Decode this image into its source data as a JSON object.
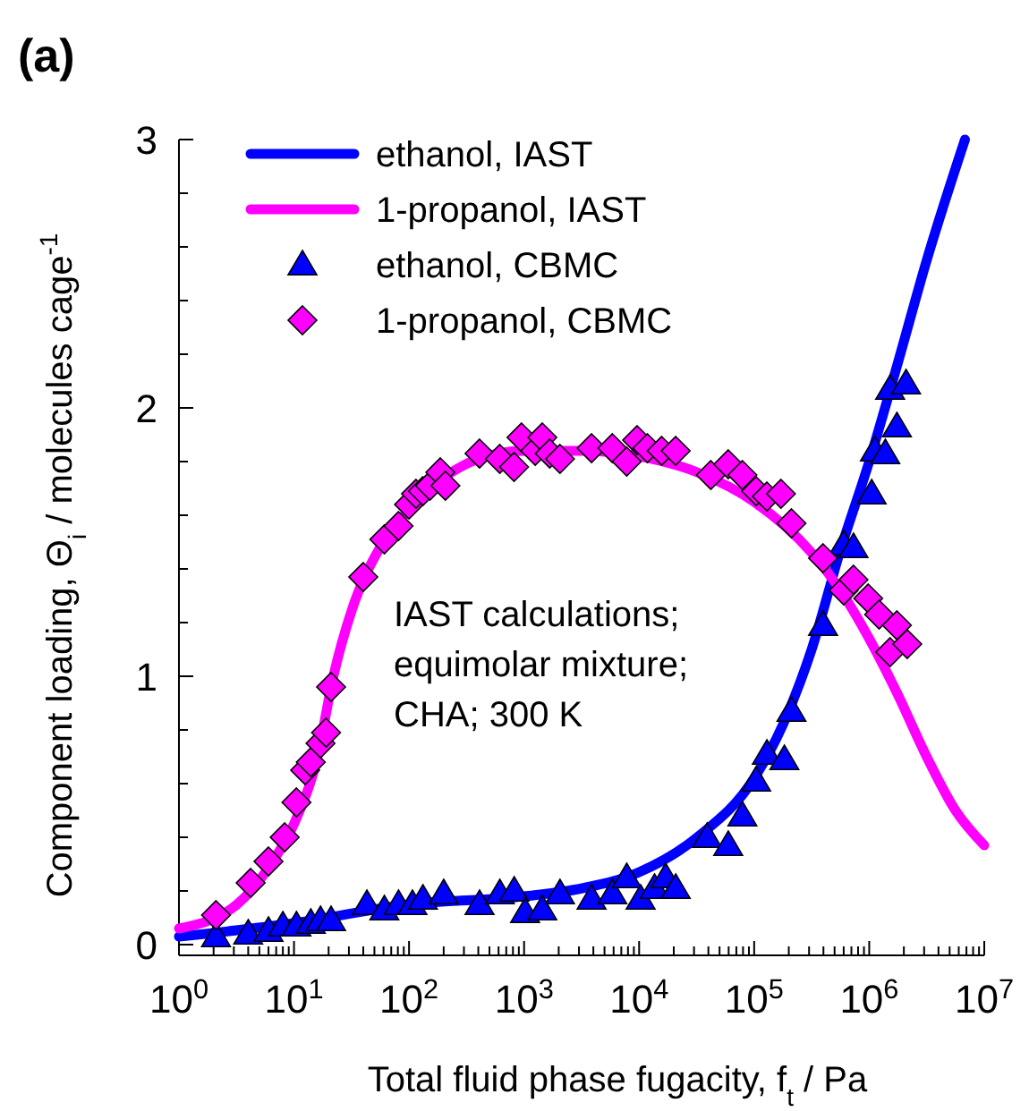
{
  "chart_data": {
    "type": "scatter",
    "title": "(a)",
    "xlabel": "Total fluid phase fugacity, f$_{t}$ / Pa",
    "ylabel": "Component loading, Θ$_{i}$ / molecules cage$^{-1}$",
    "annotations": [
      "IAST calculations;\nequimolar mixture;\nCHA; 300 K"
    ],
    "log": "x",
    "legend": "top left",
    "grid": false,
    "xlim": [
      1,
      10000000
    ],
    "ylim": [
      -0.04,
      3
    ],
    "xticks": [
      {
        "value": 1,
        "label": "10$^{0}$"
      },
      {
        "value": 2,
        "label": null
      },
      {
        "value": 3,
        "label": null
      },
      {
        "value": 4,
        "label": null
      },
      {
        "value": 5,
        "label": null
      },
      {
        "value": 6,
        "label": null
      },
      {
        "value": 7,
        "label": null
      },
      {
        "value": 8,
        "label": null
      },
      {
        "value": 9,
        "label": null
      },
      {
        "value": 10,
        "label": "10$^{1}$"
      },
      {
        "value": 20,
        "label": null
      },
      {
        "value": 30,
        "label": null
      },
      {
        "value": 40,
        "label": null
      },
      {
        "value": 50,
        "label": null
      },
      {
        "value": 60,
        "label": null
      },
      {
        "value": 70,
        "label": null
      },
      {
        "value": 80,
        "label": null
      },
      {
        "value": 90,
        "label": null
      },
      {
        "value": 100,
        "label": "10$^{2}$"
      },
      {
        "value": 200,
        "label": null
      },
      {
        "value": 300,
        "label": null
      },
      {
        "value": 400,
        "label": null
      },
      {
        "value": 500,
        "label": null
      },
      {
        "value": 600,
        "label": null
      },
      {
        "value": 700,
        "label": null
      },
      {
        "value": 800,
        "label": null
      },
      {
        "value": 900,
        "label": null
      },
      {
        "value": 1000,
        "label": "10$^{3}$"
      },
      {
        "value": 2000,
        "label": null
      },
      {
        "value": 3000,
        "label": null
      },
      {
        "value": 4000,
        "label": null
      },
      {
        "value": 5000,
        "label": null
      },
      {
        "value": 6000,
        "label": null
      },
      {
        "value": 7000,
        "label": null
      },
      {
        "value": 8000,
        "label": null
      },
      {
        "value": 9000,
        "label": null
      },
      {
        "value": 10000,
        "label": "10$^{4}$"
      },
      {
        "value": 20000,
        "label": null
      },
      {
        "value": 30000,
        "label": null
      },
      {
        "value": 40000,
        "label": null
      },
      {
        "value": 50000,
        "label": null
      },
      {
        "value": 60000,
        "label": null
      },
      {
        "value": 70000,
        "label": null
      },
      {
        "value": 80000,
        "label": null
      },
      {
        "value": 90000,
        "label": null
      },
      {
        "value": 100000,
        "label": "10$^{5}$"
      },
      {
        "value": 200000,
        "label": null
      },
      {
        "value": 300000,
        "label": null
      },
      {
        "value": 400000,
        "label": null
      },
      {
        "value": 500000,
        "label": null
      },
      {
        "value": 600000,
        "label": null
      },
      {
        "value": 700000,
        "label": null
      },
      {
        "value": 800000,
        "label": null
      },
      {
        "value": 900000,
        "label": null
      },
      {
        "value": 1000000,
        "label": "10$^{6}$"
      },
      {
        "value": 2000000,
        "label": null
      },
      {
        "value": 3000000,
        "label": null
      },
      {
        "value": 4000000,
        "label": null
      },
      {
        "value": 5000000,
        "label": null
      },
      {
        "value": 6000000,
        "label": null
      },
      {
        "value": 7000000,
        "label": null
      },
      {
        "value": 8000000,
        "label": null
      },
      {
        "value": 9000000,
        "label": null
      },
      {
        "value": 10000000,
        "label": "10$^{7}$"
      }
    ],
    "yticks": [
      0,
      {
        "value": 0.2,
        "label": null
      },
      {
        "value": 0.4,
        "label": null
      },
      {
        "value": 0.6,
        "label": null
      },
      {
        "value": 0.8,
        "label": null
      },
      1,
      {
        "value": 1.2,
        "label": null
      },
      {
        "value": 1.4,
        "label": null
      },
      {
        "value": 1.6,
        "label": null
      },
      {
        "value": 1.8,
        "label": null
      },
      2,
      {
        "value": 2.2,
        "label": null
      },
      {
        "value": 2.4,
        "label": null
      },
      {
        "value": 2.6,
        "label": null
      },
      {
        "value": 2.8,
        "label": null
      },
      3
    ],
    "series": [
      {
        "name": "ethanol, IAST",
        "type": "line",
        "color": "#0000ff",
        "line_style": "solid",
        "x": [
          1,
          10,
          100,
          1000,
          3200,
          10000,
          32000,
          100000,
          178000,
          316000,
          562000,
          1000000,
          1780000,
          3160000,
          6800000
        ],
        "values": [
          0.03,
          0.08,
          0.15,
          0.18,
          0.21,
          0.27,
          0.4,
          0.62,
          0.82,
          1.1,
          1.47,
          1.8,
          2.17,
          2.55,
          3.0
        ]
      },
      {
        "name": "1-propanol, IAST",
        "type": "line",
        "color": "#ff00ff",
        "line_style": "solid",
        "x": [
          1,
          3.2,
          6.3,
          10,
          16,
          22,
          32,
          56,
          100,
          200,
          400,
          1000,
          3200,
          10000,
          32000,
          100000,
          316000,
          562000,
          1000000,
          1780000,
          3160000,
          5620000,
          10000000
        ],
        "values": [
          0.06,
          0.15,
          0.3,
          0.45,
          0.7,
          1.0,
          1.25,
          1.48,
          1.62,
          1.74,
          1.81,
          1.84,
          1.84,
          1.82,
          1.76,
          1.65,
          1.46,
          1.32,
          1.14,
          0.93,
          0.7,
          0.5,
          0.37
        ]
      },
      {
        "name": "ethanol, CBMC",
        "color": "#0000ff",
        "marker": "triangle",
        "x": [
          2.1,
          4,
          6,
          8,
          10.5,
          14,
          17,
          21,
          43,
          61,
          81,
          107,
          132,
          200,
          410,
          615,
          820,
          1020,
          1440,
          2050,
          3860,
          5850,
          7800,
          10300,
          13600,
          17000,
          20800,
          39000,
          59500,
          79000,
          104000,
          129000,
          183000,
          211000,
          397000,
          600000,
          730000,
          1050000,
          1120000,
          1380000,
          1520000,
          1740000,
          2090000
        ],
        "values": [
          0.03,
          0.04,
          0.05,
          0.07,
          0.07,
          0.08,
          0.09,
          0.09,
          0.15,
          0.13,
          0.15,
          0.15,
          0.17,
          0.19,
          0.15,
          0.19,
          0.2,
          0.12,
          0.13,
          0.19,
          0.17,
          0.19,
          0.25,
          0.17,
          0.21,
          0.25,
          0.21,
          0.4,
          0.37,
          0.48,
          0.61,
          0.71,
          0.69,
          0.87,
          1.19,
          1.49,
          1.48,
          1.68,
          1.84,
          1.83,
          2.07,
          1.93,
          2.09
        ]
      },
      {
        "name": "1-propanol, CBMC",
        "color": "#ff00ff",
        "marker": "diamond",
        "x": [
          2.1,
          4.2,
          6,
          8.3,
          10.5,
          12.5,
          14,
          17,
          19,
          21,
          40,
          61,
          81,
          100,
          115,
          132,
          152,
          187,
          207,
          410,
          615,
          818,
          950,
          1250,
          1440,
          1670,
          2050,
          3860,
          5850,
          7800,
          9600,
          11800,
          15700,
          20800,
          42000,
          59500,
          79000,
          104000,
          129000,
          171000,
          211000,
          397000,
          600000,
          730000,
          980000,
          1220000,
          1520000,
          1740000,
          2140000
        ],
        "values": [
          0.11,
          0.23,
          0.31,
          0.4,
          0.53,
          0.65,
          0.68,
          0.75,
          0.79,
          0.96,
          1.37,
          1.51,
          1.56,
          1.64,
          1.68,
          1.69,
          1.71,
          1.76,
          1.71,
          1.83,
          1.81,
          1.78,
          1.89,
          1.84,
          1.89,
          1.83,
          1.81,
          1.85,
          1.85,
          1.8,
          1.88,
          1.85,
          1.84,
          1.84,
          1.75,
          1.79,
          1.75,
          1.69,
          1.67,
          1.68,
          1.57,
          1.44,
          1.32,
          1.36,
          1.29,
          1.23,
          1.09,
          1.19,
          1.12
        ]
      }
    ]
  }
}
